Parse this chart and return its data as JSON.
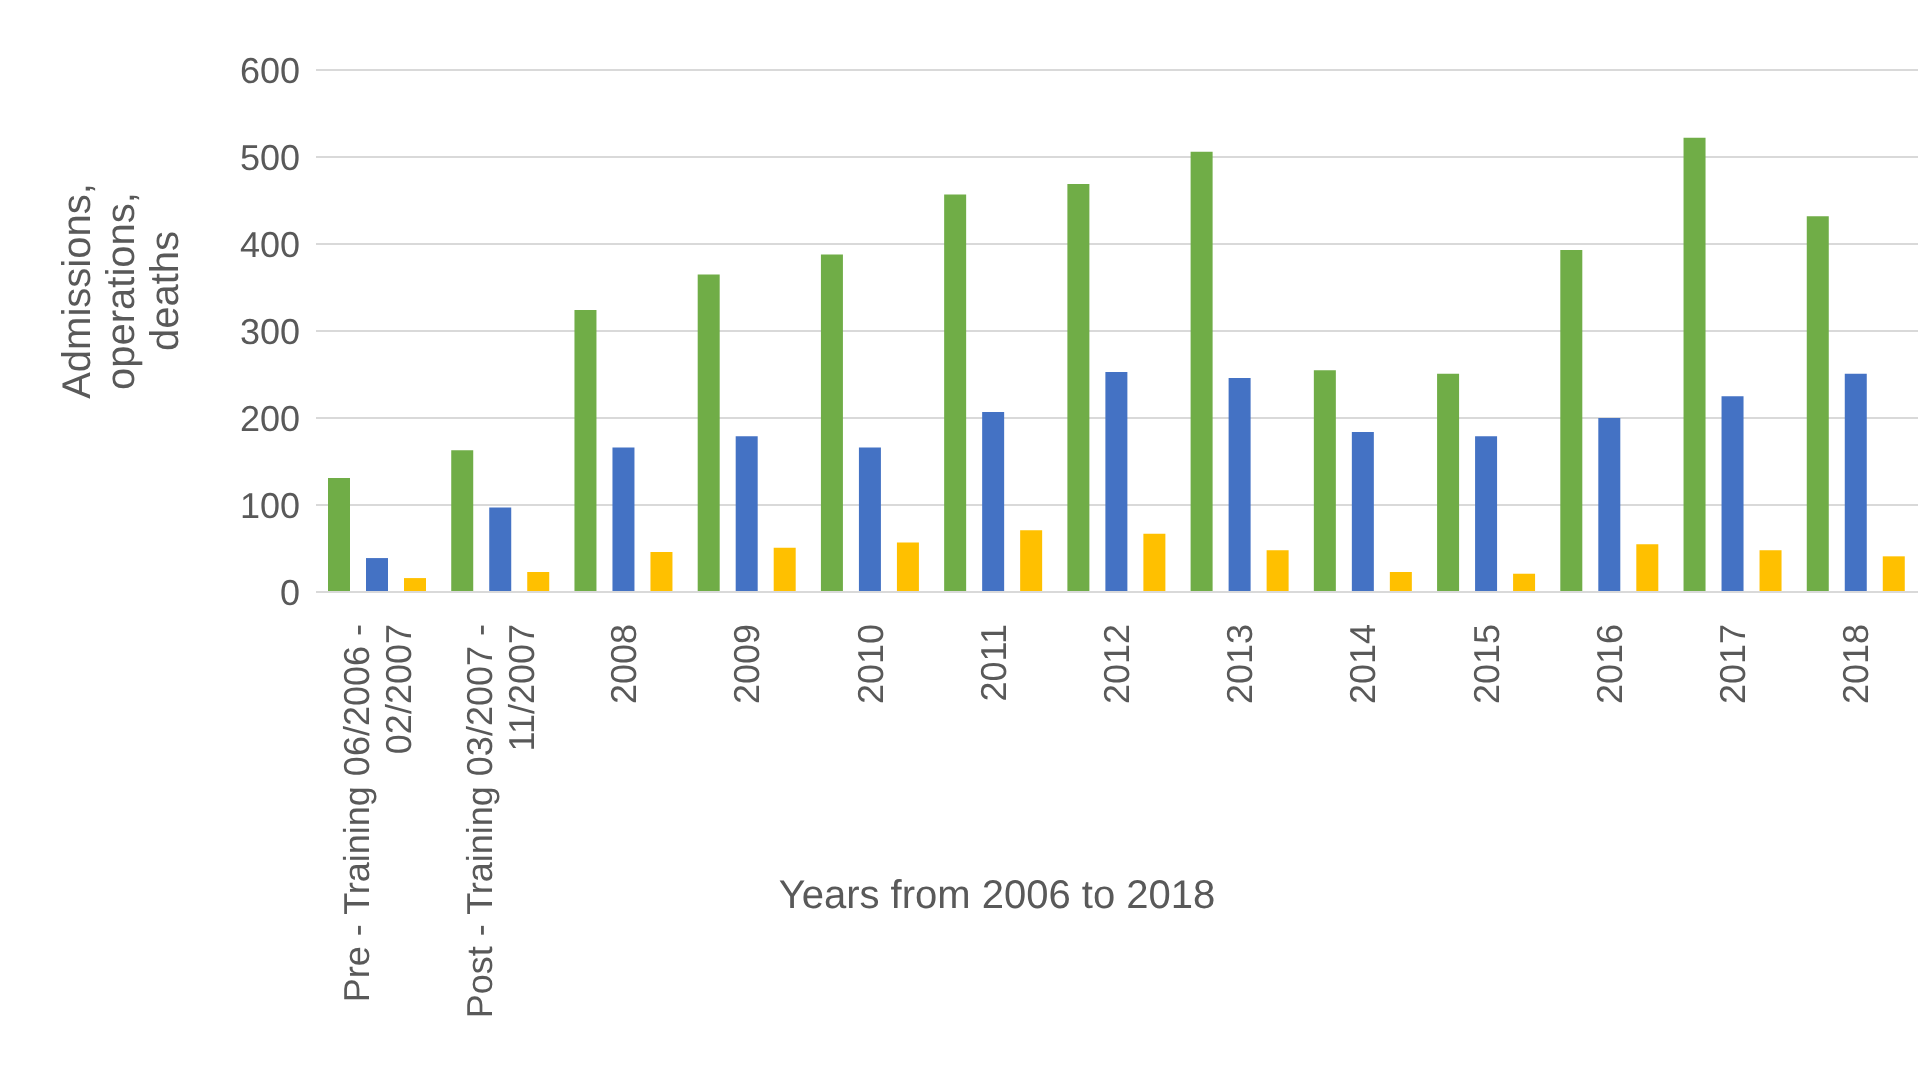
{
  "chart_data": {
    "type": "bar",
    "xlabel": "Years from 2006 to 2018",
    "ylabel": "Admissions, operations, deaths",
    "categories": [
      "Pre - Training 06/2006 - 02/2007",
      "Post - Training 03/2007 - 11/2007",
      "2008",
      "2009",
      "2010",
      "2011",
      "2012",
      "2013",
      "2014",
      "2015",
      "2016",
      "2017",
      "2018"
    ],
    "series": [
      {
        "color": "#70ad47",
        "values": [
          131,
          163,
          324,
          365,
          388,
          457,
          469,
          506,
          255,
          251,
          393,
          522,
          432
        ]
      },
      {
        "color": "#4472c4",
        "values": [
          39,
          97,
          166,
          179,
          166,
          207,
          253,
          246,
          184,
          179,
          200,
          225,
          251
        ]
      },
      {
        "color": "#ffc000",
        "values": [
          16,
          23,
          46,
          51,
          57,
          71,
          67,
          48,
          23,
          21,
          55,
          48,
          41
        ]
      }
    ],
    "ylim": [
      0,
      600
    ],
    "yticks": [
      0,
      100,
      200,
      300,
      400,
      500,
      600
    ],
    "grid": "y",
    "legend": false
  }
}
